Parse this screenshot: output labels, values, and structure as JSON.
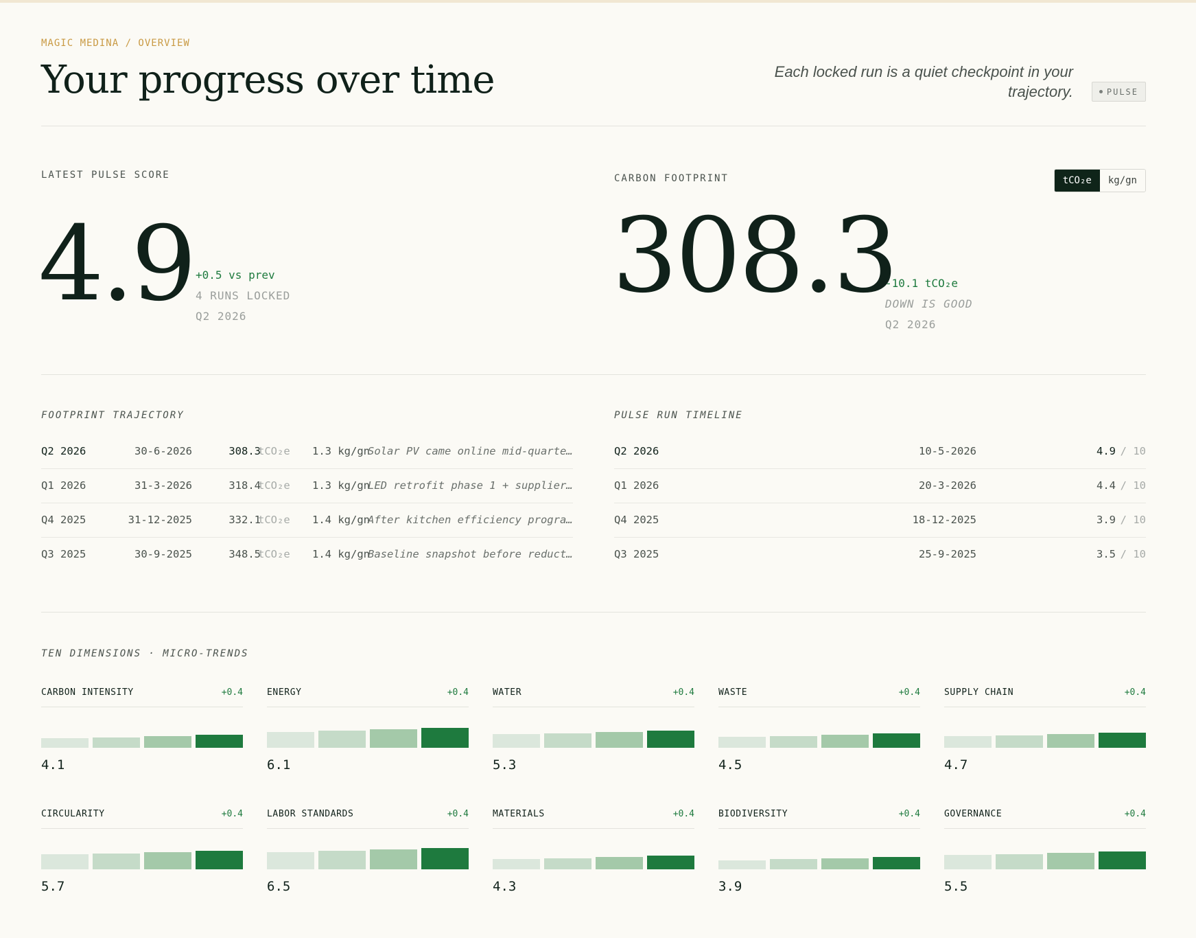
{
  "header": {
    "breadcrumb": "MAGIC MEDINA / OVERVIEW",
    "title": "Your progress over time",
    "tagline": "Each locked run is a quiet checkpoint in your trajectory.",
    "badge": "PULSE"
  },
  "pulse": {
    "label": "LATEST PULSE SCORE",
    "value": "4.9",
    "delta": "+0.5 vs prev",
    "runs": "4 RUNS LOCKED",
    "period": "Q2 2026"
  },
  "carbon": {
    "label": "CARBON FOOTPRINT",
    "value": "308.3",
    "delta": "-10.1 tCO₂e",
    "note": "DOWN IS GOOD",
    "period": "Q2 2026",
    "units": [
      "tCO₂e",
      "kg/gn"
    ],
    "active_unit": "tCO₂e"
  },
  "footprint": {
    "label": "FOOTPRINT TRAJECTORY",
    "rows": [
      {
        "quarter": "Q2 2026",
        "date": "30-6-2026",
        "value": "308.3",
        "unit": "tCO₂e",
        "intensity": "1.3 kg/gn",
        "note": "Solar PV came online mid-quarte…"
      },
      {
        "quarter": "Q1 2026",
        "date": "31-3-2026",
        "value": "318.4",
        "unit": "tCO₂e",
        "intensity": "1.3 kg/gn",
        "note": "LED retrofit phase 1 + supplier…"
      },
      {
        "quarter": "Q4 2025",
        "date": "31-12-2025",
        "value": "332.1",
        "unit": "tCO₂e",
        "intensity": "1.4 kg/gn",
        "note": "After kitchen efficiency progra…"
      },
      {
        "quarter": "Q3 2025",
        "date": "30-9-2025",
        "value": "348.5",
        "unit": "tCO₂e",
        "intensity": "1.4 kg/gn",
        "note": "Baseline snapshot before reduct…"
      }
    ]
  },
  "timeline": {
    "label": "PULSE RUN TIMELINE",
    "rows": [
      {
        "quarter": "Q2 2026",
        "date": "10-5-2026",
        "score": "4.9",
        "of": "/ 10"
      },
      {
        "quarter": "Q1 2026",
        "date": "20-3-2026",
        "score": "4.4",
        "of": "/ 10"
      },
      {
        "quarter": "Q4 2025",
        "date": "18-12-2025",
        "score": "3.9",
        "of": "/ 10"
      },
      {
        "quarter": "Q3 2025",
        "date": "25-9-2025",
        "score": "3.5",
        "of": "/ 10"
      }
    ]
  },
  "dimensions": {
    "label": "TEN DIMENSIONS · MICRO-TRENDS",
    "bar_colors": [
      "#dbe7dc",
      "#c5dbc8",
      "#a4c9a9",
      "#1e7a3e"
    ],
    "items": [
      {
        "name": "CARBON INTENSITY",
        "delta": "+0.4",
        "score": "4.1",
        "trend": [
          3.0,
          3.3,
          3.7,
          4.1
        ]
      },
      {
        "name": "ENERGY",
        "delta": "+0.4",
        "score": "6.1",
        "trend": [
          5.0,
          5.3,
          5.7,
          6.1
        ]
      },
      {
        "name": "WATER",
        "delta": "+0.4",
        "score": "5.3",
        "trend": [
          4.2,
          4.5,
          4.9,
          5.3
        ]
      },
      {
        "name": "WASTE",
        "delta": "+0.4",
        "score": "4.5",
        "trend": [
          3.4,
          3.7,
          4.1,
          4.5
        ]
      },
      {
        "name": "SUPPLY CHAIN",
        "delta": "+0.4",
        "score": "4.7",
        "trend": [
          3.6,
          3.9,
          4.3,
          4.7
        ]
      },
      {
        "name": "CIRCULARITY",
        "delta": "+0.4",
        "score": "5.7",
        "trend": [
          4.6,
          4.9,
          5.3,
          5.7
        ]
      },
      {
        "name": "LABOR STANDARDS",
        "delta": "+0.4",
        "score": "6.5",
        "trend": [
          5.4,
          5.7,
          6.1,
          6.5
        ]
      },
      {
        "name": "MATERIALS",
        "delta": "+0.4",
        "score": "4.3",
        "trend": [
          3.2,
          3.5,
          3.9,
          4.3
        ]
      },
      {
        "name": "BIODIVERSITY",
        "delta": "+0.4",
        "score": "3.9",
        "trend": [
          2.8,
          3.1,
          3.5,
          3.9
        ]
      },
      {
        "name": "GOVERNANCE",
        "delta": "+0.4",
        "score": "5.5",
        "trend": [
          4.4,
          4.7,
          5.1,
          5.5
        ]
      }
    ]
  }
}
